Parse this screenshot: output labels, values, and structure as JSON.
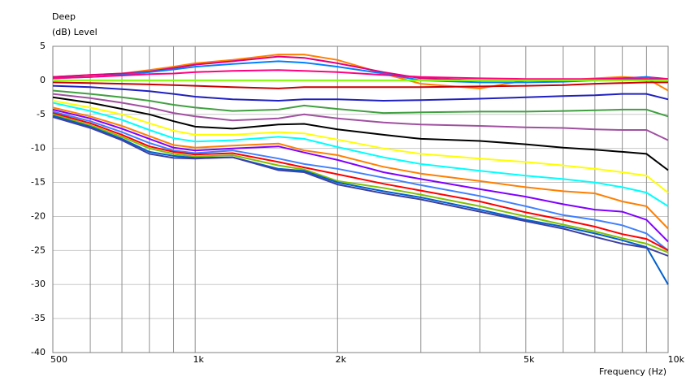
{
  "chart_data": {
    "type": "line",
    "title": "Deep",
    "subtitle": "(dB)  Level",
    "x_label": "Frequency  (Hz)",
    "log_x": true,
    "grid": true,
    "xlim": [
      500,
      10000
    ],
    "xticks": [
      500,
      {
        "value": 1000,
        "label": "1k"
      },
      {
        "value": 2000,
        "label": "2k"
      },
      {
        "value": 5000,
        "label": "5k"
      },
      {
        "value": 10000,
        "label": "10k"
      }
    ],
    "xgrid_ticks": [
      600,
      700,
      800,
      900,
      3000,
      4000,
      6000,
      7000,
      8000,
      9000
    ],
    "ylim": [
      -40,
      5
    ],
    "yticks": [
      5,
      0,
      -5,
      -10,
      -15,
      -20,
      -25,
      -30,
      -35,
      -40
    ],
    "x": [
      500,
      600,
      700,
      800,
      900,
      1000,
      1200,
      1500,
      1700,
      2000,
      2500,
      3000,
      4000,
      5000,
      6000,
      7000,
      8000,
      9000,
      10000
    ],
    "series": [
      {
        "color": "#ff8000",
        "values": [
          0.5,
          0.8,
          1,
          1.5,
          2,
          2.5,
          3,
          3.8,
          3.8,
          3,
          1,
          -0.5,
          -1.2,
          0,
          0,
          0.3,
          0.5,
          0.3,
          -1.5
        ]
      },
      {
        "color": "#e0007f",
        "values": [
          0.5,
          0.8,
          1,
          1.3,
          1.8,
          2.3,
          2.8,
          3.5,
          3.3,
          2.5,
          1.2,
          0.3,
          0,
          0,
          0,
          0.2,
          0.3,
          0.5,
          0.2
        ]
      },
      {
        "color": "#0080ff",
        "values": [
          0.3,
          0.5,
          0.8,
          1.2,
          1.6,
          2,
          2.4,
          2.8,
          2.6,
          2,
          1,
          0,
          -0.3,
          -0.3,
          -0.2,
          0,
          0.2,
          0.5,
          0
        ]
      },
      {
        "color": "#ff0080",
        "values": [
          0.3,
          0.5,
          0.7,
          0.9,
          1,
          1.2,
          1.4,
          1.5,
          1.4,
          1.2,
          0.8,
          0.5,
          0.3,
          0.2,
          0.2,
          0.2,
          0.2,
          0.2,
          0.2
        ]
      },
      {
        "color": "#80ff00",
        "values": [
          0,
          0,
          0,
          0,
          0,
          0,
          0,
          0,
          0,
          0,
          0,
          0,
          0,
          0,
          0,
          0,
          0,
          0,
          0
        ]
      },
      {
        "color": "#c80000",
        "values": [
          -0.3,
          -0.4,
          -0.5,
          -0.6,
          -0.7,
          -0.8,
          -1,
          -1.2,
          -1,
          -1,
          -1,
          -1,
          -0.9,
          -0.8,
          -0.7,
          -0.5,
          -0.4,
          -0.3,
          -0.3
        ]
      },
      {
        "color": "#2020c0",
        "values": [
          -0.8,
          -1,
          -1.3,
          -1.6,
          -2,
          -2.4,
          -2.8,
          -3,
          -2.8,
          -2.8,
          -3,
          -2.9,
          -2.7,
          -2.5,
          -2.3,
          -2.2,
          -2,
          -2,
          -2.8
        ]
      },
      {
        "color": "#40a040",
        "values": [
          -1.5,
          -2,
          -2.5,
          -3,
          -3.6,
          -4,
          -4.5,
          -4.3,
          -3.7,
          -4.2,
          -4.8,
          -4.7,
          -4.6,
          -4.6,
          -4.5,
          -4.4,
          -4.3,
          -4.3,
          -5.3
        ]
      },
      {
        "color": "#a050a0",
        "values": [
          -2,
          -2.6,
          -3.3,
          -4,
          -4.8,
          -5.3,
          -5.9,
          -5.6,
          -5,
          -5.6,
          -6.2,
          -6.5,
          -6.7,
          -6.9,
          -7,
          -7.2,
          -7.3,
          -7.3,
          -8.8
        ]
      },
      {
        "color": "#000000",
        "values": [
          -2.5,
          -3.3,
          -4.2,
          -5,
          -6,
          -6.8,
          -7.1,
          -6.5,
          -6.4,
          -7.2,
          -8,
          -8.6,
          -8.9,
          -9.4,
          -9.9,
          -10.2,
          -10.5,
          -10.8,
          -13.2
        ]
      },
      {
        "color": "#ffff00",
        "values": [
          -3,
          -4,
          -5,
          -6.3,
          -7.4,
          -8,
          -8,
          -7.6,
          -7.8,
          -8.7,
          -10,
          -10.8,
          -11.5,
          -12,
          -12.5,
          -13,
          -13.5,
          -14,
          -16.5
        ]
      },
      {
        "color": "#00ffff",
        "values": [
          -3.3,
          -4.5,
          -5.8,
          -7.3,
          -8.5,
          -9,
          -8.8,
          -8.3,
          -8.6,
          -9.8,
          -11.3,
          -12.3,
          -13.3,
          -14,
          -14.5,
          -15,
          -15.7,
          -16.5,
          -18.5
        ]
      },
      {
        "color": "#ff7f00",
        "values": [
          -4,
          -5.3,
          -6.7,
          -8.2,
          -9.5,
          -9.9,
          -9.6,
          -9.3,
          -10.3,
          -11,
          -12.7,
          -13.7,
          -14.8,
          -15.7,
          -16.3,
          -16.6,
          -17.8,
          -18.5,
          -21.8
        ]
      },
      {
        "color": "#8000ff",
        "values": [
          -4.3,
          -5.6,
          -7.1,
          -8.6,
          -9.9,
          -10.3,
          -10,
          -9.7,
          -10.6,
          -11.7,
          -13.5,
          -14.5,
          -16,
          -17.1,
          -18.2,
          -19,
          -19.3,
          -20.5,
          -23.7
        ]
      },
      {
        "color": "#4080ff",
        "values": [
          -4.6,
          -6,
          -7.6,
          -9.2,
          -10.3,
          -10.7,
          -10.3,
          -11.5,
          -12.3,
          -13,
          -14.3,
          -15.4,
          -17,
          -18.5,
          -19.8,
          -20.5,
          -21.3,
          -22.5,
          -25
        ]
      },
      {
        "color": "#ff0000",
        "values": [
          -4.8,
          -6.3,
          -8,
          -9.7,
          -10.5,
          -10.9,
          -10.7,
          -12,
          -12.8,
          -13.8,
          -15.2,
          -16.2,
          -17.8,
          -19.4,
          -20.5,
          -21.5,
          -22.6,
          -23.3,
          -25
        ]
      },
      {
        "color": "#80c000",
        "values": [
          -5,
          -6.6,
          -8.3,
          -10,
          -10.8,
          -11.2,
          -11,
          -12.5,
          -13.1,
          -14.8,
          -15.8,
          -16.8,
          -18.5,
          -20,
          -21.2,
          -22.2,
          -23.2,
          -24,
          -25.3
        ]
      },
      {
        "color": "#0060d0",
        "values": [
          -5.2,
          -6.8,
          -8.6,
          -10.5,
          -11.1,
          -11.4,
          -11.3,
          -13,
          -13.3,
          -15,
          -16.3,
          -17.2,
          -19,
          -20.5,
          -21.5,
          -22.5,
          -23.5,
          -24.5,
          -30
        ]
      },
      {
        "color": "#4040a0",
        "values": [
          -5.4,
          -7,
          -8.8,
          -10.8,
          -11.4,
          -11.5,
          -11.3,
          -13.2,
          -13.5,
          -15.3,
          -16.6,
          -17.5,
          -19.3,
          -20.7,
          -21.8,
          -23,
          -24,
          -24.6,
          -25.8
        ]
      }
    ]
  }
}
